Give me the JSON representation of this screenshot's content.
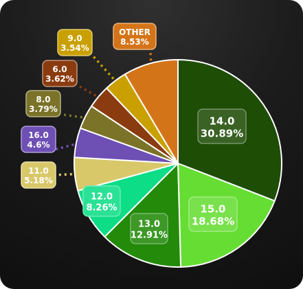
{
  "chart_data": {
    "type": "pie",
    "slices": [
      {
        "label": "14.0",
        "value": 30.89,
        "pct_label": "30.89%",
        "color": "#1e4d06"
      },
      {
        "label": "15.0",
        "value": 18.68,
        "pct_label": "18.68%",
        "color": "#66dd33"
      },
      {
        "label": "13.0",
        "value": 12.91,
        "pct_label": "12.91%",
        "color": "#238a0a"
      },
      {
        "label": "12.0",
        "value": 8.26,
        "pct_label": "8.26%",
        "color": "#0edd88"
      },
      {
        "label": "11.0",
        "value": 5.18,
        "pct_label": "5.18%",
        "color": "#d8c86a"
      },
      {
        "label": "16.0",
        "value": 4.6,
        "pct_label": "4.6%",
        "color": "#6e4fb4"
      },
      {
        "label": "8.0",
        "value": 3.79,
        "pct_label": "3.79%",
        "color": "#7a7328"
      },
      {
        "label": "6.0",
        "value": 3.62,
        "pct_label": "3.62%",
        "color": "#8a3c10"
      },
      {
        "label": "9.0",
        "value": 3.54,
        "pct_label": "3.54%",
        "color": "#c9a000"
      },
      {
        "label": "OTHER",
        "value": 8.53,
        "pct_label": "8.53%",
        "color": "#d47418"
      }
    ]
  }
}
